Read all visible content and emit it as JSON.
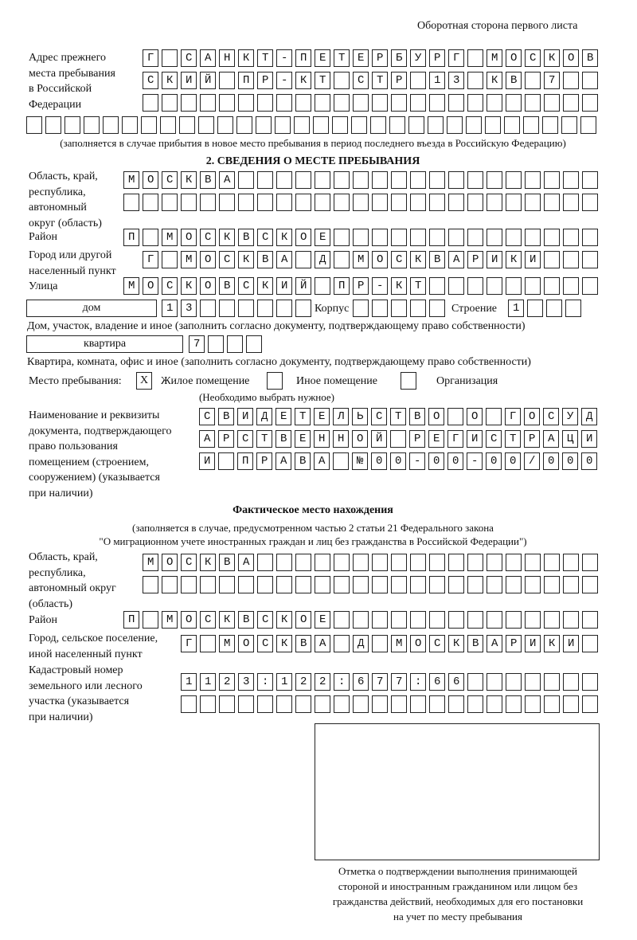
{
  "header": "Оборотная сторона первого листа",
  "prev_address": {
    "label": [
      "Адрес прежнего",
      "места пребывания",
      "в Российской",
      "Федерации"
    ],
    "rows": [
      "Г САНКТ-ПЕТЕРБУРГ МОСКОВ",
      "СКИЙ ПР-КТ СТР 13 КВ 7",
      "",
      ""
    ],
    "note": "(заполняется в случае прибытия в новое место пребывания в период последнего въезда в Российскую Федерацию)"
  },
  "section2": {
    "title": "2. СВЕДЕНИЯ О МЕСТЕ ПРЕБЫВАНИЯ",
    "region_label": [
      "Область, край,",
      "республика,",
      "автономный",
      "округ (область)"
    ],
    "region_rows": [
      "МОСКВА",
      ""
    ],
    "district_label": "Район",
    "district": "П МОСКВСКОЕ",
    "city_label": [
      "Город или другой",
      "населенный пункт"
    ],
    "city": "Г МОСКВА Д МОСКВАРИКИ",
    "street_label": "Улица",
    "street": "МОСКОВСКИЙ ПР-КТ",
    "house_type": "дом",
    "house": "13",
    "korpus_label": "Корпус",
    "korpus": "",
    "building_label": "Строение",
    "building": "1",
    "house_note": "Дом, участок, владение и иное (заполнить согласно документу, подтверждающему право собственности)",
    "flat_type": "квартира",
    "flat": "7",
    "flat_note": "Квартира, комната, офис и иное (заполнить согласно документу, подтверждающему право собственности)",
    "stay_label": "Место пребывания:",
    "options": [
      {
        "label": "Жилое помещение",
        "mark": "X"
      },
      {
        "label": "Иное помещение",
        "mark": ""
      },
      {
        "label": "Организация",
        "mark": ""
      }
    ],
    "choose_note": "(Необходимо выбрать нужное)",
    "doc_label": [
      "Наименование и реквизиты",
      "документа, подтверждающего",
      "право пользования",
      "помещением (строением,",
      "сооружением) (указывается",
      "при наличии)"
    ],
    "doc_rows": [
      "СВИДЕТЕЛЬСТВО О ГОСУД",
      "АРСТВЕННОЙ РЕГИСТРАЦИ",
      "И ПРАВА №00-00-00/000"
    ]
  },
  "actual": {
    "title": "Фактическое место нахождения",
    "note": [
      "(заполняется в случае, предусмотренном частью 2 статьи 21 Федерального закона",
      "\"О миграционном учете иностранных граждан и лиц без гражданства в Российской Федерации\")"
    ],
    "region_label": [
      "Область, край,",
      "республика,",
      "автономный округ",
      "(область)"
    ],
    "region_rows": [
      "МОСКВА",
      ""
    ],
    "district_label": "Район",
    "district": "П МОСКВСКОЕ",
    "city_label": [
      "Город, сельское поселение,",
      "иной населенный пункт"
    ],
    "city": "Г МОСКВА Д МОСКВАРИКИ",
    "cadastral_label": [
      "Кадастровый номер",
      "земельного или лесного",
      "участка (указывается",
      "при наличии)"
    ],
    "cadastral_rows": [
      "1123:122:677:66",
      ""
    ]
  },
  "stamp": {
    "caption": [
      "Отметка о подтверждении выполнения принимающей",
      "стороной и иностранным гражданином или лицом без",
      "гражданства действий, необходимых для его постановки",
      "на учет по месту пребывания"
    ]
  }
}
